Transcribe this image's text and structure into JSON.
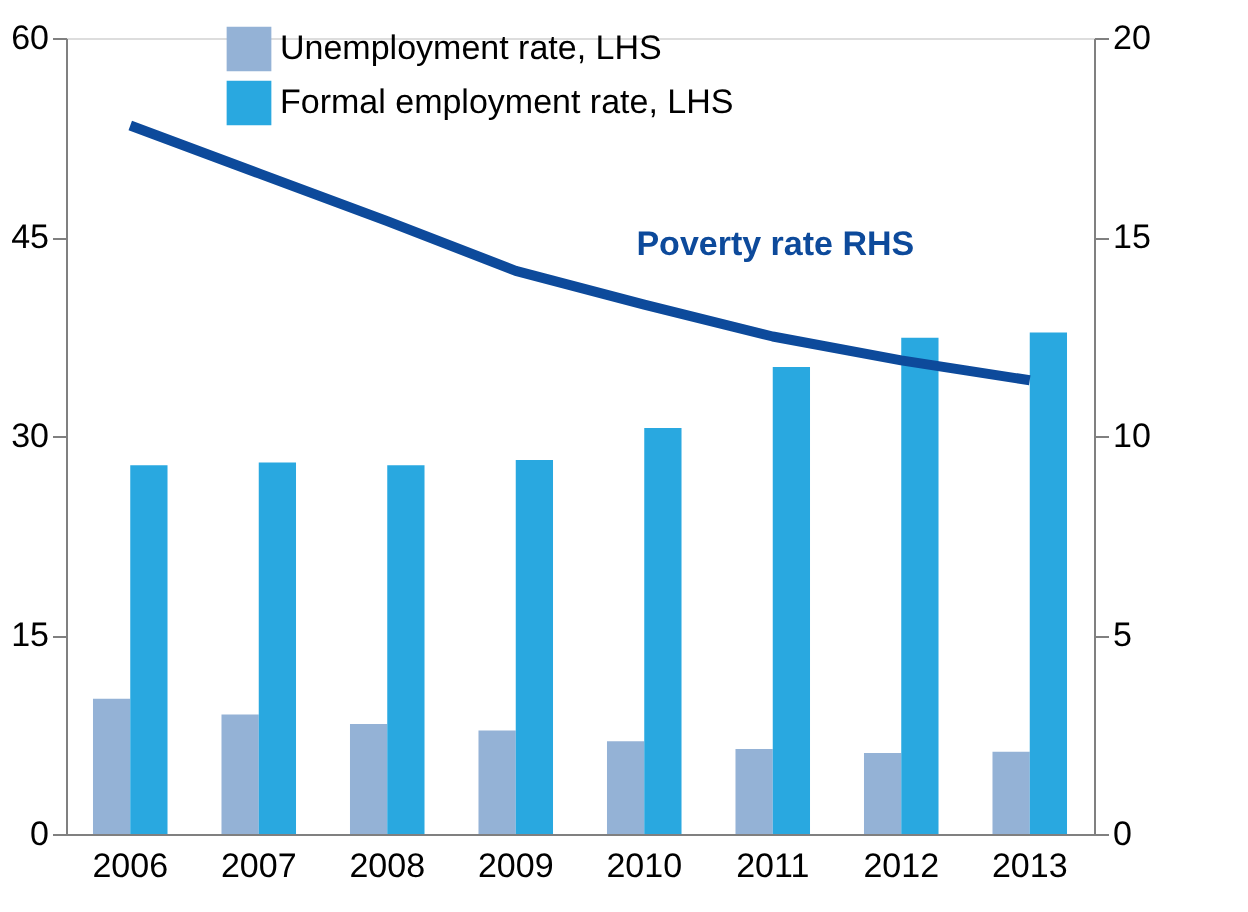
{
  "chart_data": {
    "type": "bar",
    "categories": [
      "2006",
      "2007",
      "2008",
      "2009",
      "2010",
      "2011",
      "2012",
      "2013"
    ],
    "series": [
      {
        "name": "Unemployment rate, LHS",
        "color": "#94b2d6",
        "values": [
          10.2,
          9.0,
          8.3,
          7.8,
          7.0,
          6.4,
          6.1,
          6.2
        ]
      },
      {
        "name": "Formal employment rate, LHS",
        "color": "#29a8e0",
        "values": [
          27.8,
          28.0,
          27.8,
          28.2,
          30.6,
          35.2,
          37.4,
          37.8
        ]
      },
      {
        "name": "Poverty rate RHS",
        "type": "line",
        "axis": "y2",
        "color": "#0d4a9b",
        "values": [
          17.8,
          16.6,
          15.4,
          14.15,
          13.3,
          12.5,
          11.9,
          11.4
        ]
      }
    ],
    "ylim": [
      0,
      60
    ],
    "yticks": [
      0,
      15,
      30,
      45,
      60
    ],
    "y2lim": [
      0,
      20
    ],
    "y2ticks": [
      0,
      5,
      10,
      15,
      20
    ],
    "legend": "top",
    "grid": false
  }
}
